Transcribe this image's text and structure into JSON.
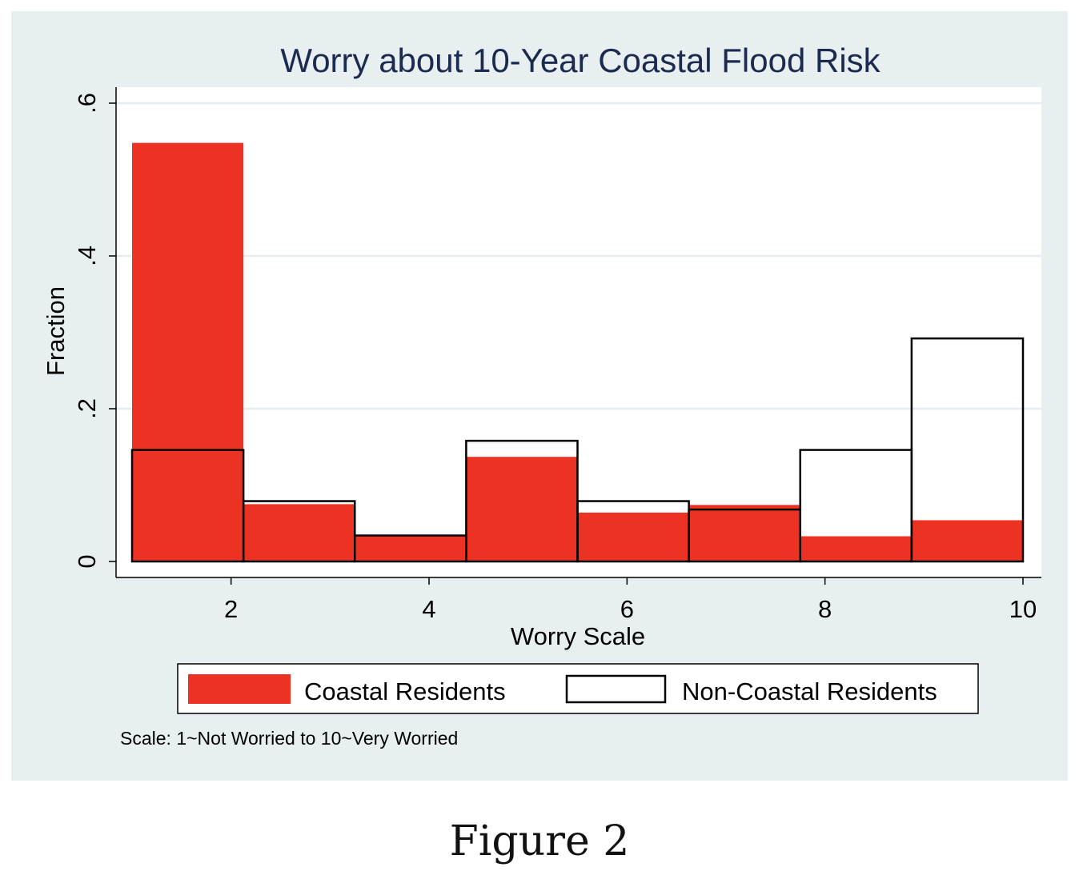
{
  "figure_caption": "Figure 2",
  "chart_data": {
    "type": "bar",
    "title": "Worry about 10-Year Coastal Flood Risk",
    "xlabel": "Worry Scale",
    "ylabel": "Fraction",
    "xlim": [
      1,
      10
    ],
    "ylim": [
      0,
      0.6
    ],
    "x_ticks": [
      2,
      4,
      6,
      8,
      10
    ],
    "x_tick_labels": [
      "2",
      "4",
      "6",
      "8",
      "10"
    ],
    "y_ticks": [
      0,
      0.2,
      0.4,
      0.6
    ],
    "y_tick_labels": [
      "0",
      ".2",
      ".4",
      ".6"
    ],
    "grid": true,
    "legend_position": "bottom",
    "note": "Scale: 1~Not Worried to 10~Very Worried",
    "bins": [
      [
        1.0,
        2.125
      ],
      [
        2.125,
        3.25
      ],
      [
        3.25,
        4.375
      ],
      [
        4.375,
        5.5
      ],
      [
        5.5,
        6.625
      ],
      [
        6.625,
        7.75
      ],
      [
        7.75,
        8.875
      ],
      [
        8.875,
        10.0
      ]
    ],
    "series": [
      {
        "name": "Coastal Residents",
        "style": "filled",
        "color": "#ec3323",
        "values": [
          0.548,
          0.075,
          0.034,
          0.137,
          0.064,
          0.074,
          0.033,
          0.054
        ]
      },
      {
        "name": "Non-Coastal Residents",
        "style": "outline",
        "color": "#000000",
        "values": [
          0.146,
          0.079,
          0.034,
          0.158,
          0.079,
          0.068,
          0.146,
          0.292
        ]
      }
    ]
  }
}
